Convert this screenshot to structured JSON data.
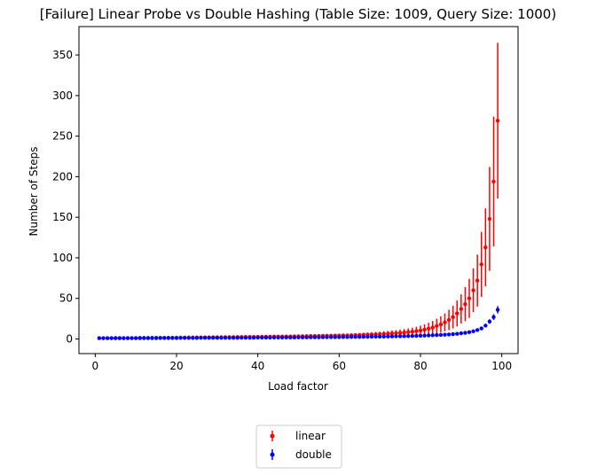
{
  "chart_data": {
    "type": "scatter",
    "title": "[Failure] Linear Probe vs Double Hashing (Table Size: 1009, Query Size: 1000)",
    "xlabel": "Load factor",
    "ylabel": "Number of Steps",
    "xlim": [
      -4,
      104
    ],
    "ylim": [
      -18,
      385
    ],
    "xticks": [
      0,
      20,
      40,
      60,
      80,
      100
    ],
    "yticks": [
      0,
      50,
      100,
      150,
      200,
      250,
      300,
      350
    ],
    "grid": false,
    "legend_position": "below",
    "x": [
      1,
      2,
      3,
      4,
      5,
      6,
      7,
      8,
      9,
      10,
      11,
      12,
      13,
      14,
      15,
      16,
      17,
      18,
      19,
      20,
      21,
      22,
      23,
      24,
      25,
      26,
      27,
      28,
      29,
      30,
      31,
      32,
      33,
      34,
      35,
      36,
      37,
      38,
      39,
      40,
      41,
      42,
      43,
      44,
      45,
      46,
      47,
      48,
      49,
      50,
      51,
      52,
      53,
      54,
      55,
      56,
      57,
      58,
      59,
      60,
      61,
      62,
      63,
      64,
      65,
      66,
      67,
      68,
      69,
      70,
      71,
      72,
      73,
      74,
      75,
      76,
      77,
      78,
      79,
      80,
      81,
      82,
      83,
      84,
      85,
      86,
      87,
      88,
      89,
      90,
      91,
      92,
      93,
      94,
      95,
      96,
      97,
      98,
      99
    ],
    "series": [
      {
        "name": "linear",
        "color": "#ff0000",
        "values": [
          1.0,
          1.0,
          1.0,
          1.0,
          1.1,
          1.1,
          1.1,
          1.2,
          1.2,
          1.2,
          1.3,
          1.3,
          1.3,
          1.4,
          1.4,
          1.4,
          1.5,
          1.5,
          1.6,
          1.6,
          1.7,
          1.7,
          1.8,
          1.8,
          1.9,
          1.9,
          2.0,
          2.0,
          2.1,
          2.1,
          2.2,
          2.2,
          2.3,
          2.3,
          2.4,
          2.4,
          2.5,
          2.5,
          2.6,
          2.7,
          2.7,
          2.8,
          2.8,
          2.9,
          3.0,
          3.0,
          3.1,
          3.1,
          3.2,
          3.3,
          3.4,
          3.5,
          3.6,
          3.7,
          3.8,
          3.9,
          4.0,
          4.1,
          4.2,
          4.3,
          4.4,
          4.5,
          4.6,
          4.8,
          5.0,
          5.2,
          5.4,
          5.6,
          5.8,
          6.0,
          6.3,
          6.6,
          6.9,
          7.2,
          7.6,
          8.0,
          8.5,
          9.0,
          9.7,
          10.5,
          11.5,
          12.8,
          14.2,
          16.0,
          18.0,
          20.5,
          23.5,
          27.0,
          31.5,
          37.0,
          43.0,
          50.0,
          60.0,
          72.0,
          92.0,
          113.0,
          148.0,
          194.0,
          269.0
        ],
        "errors": [
          0.1,
          0.1,
          0.1,
          0.1,
          0.1,
          0.1,
          0.1,
          0.1,
          0.1,
          0.1,
          0.1,
          0.1,
          0.1,
          0.2,
          0.2,
          0.2,
          0.2,
          0.2,
          0.2,
          0.2,
          0.2,
          0.3,
          0.3,
          0.3,
          0.3,
          0.3,
          0.3,
          0.3,
          0.4,
          0.4,
          0.4,
          0.4,
          0.4,
          0.5,
          0.5,
          0.5,
          0.5,
          0.6,
          0.6,
          0.6,
          0.7,
          0.7,
          0.7,
          0.8,
          0.8,
          0.9,
          0.9,
          1.0,
          1.0,
          1.1,
          1.2,
          1.2,
          1.3,
          1.3,
          1.4,
          1.5,
          1.5,
          1.6,
          1.7,
          1.8,
          1.9,
          2.0,
          2.1,
          2.2,
          2.3,
          2.4,
          2.6,
          2.7,
          2.9,
          3.0,
          3.2,
          3.4,
          3.6,
          3.8,
          4.0,
          4.3,
          4.6,
          5.0,
          5.4,
          6.0,
          6.5,
          7.2,
          8.0,
          9.0,
          10.0,
          11.0,
          12.5,
          14.0,
          16.0,
          18.0,
          21.0,
          24.0,
          27.0,
          32.0,
          40.0,
          48.0,
          64.0,
          80.0,
          96.0
        ]
      },
      {
        "name": "double",
        "color": "#0000ff",
        "values": [
          1.0,
          1.0,
          1.0,
          1.0,
          1.0,
          1.0,
          1.0,
          1.0,
          1.0,
          1.0,
          1.1,
          1.1,
          1.1,
          1.1,
          1.1,
          1.2,
          1.2,
          1.2,
          1.2,
          1.2,
          1.3,
          1.3,
          1.3,
          1.3,
          1.3,
          1.4,
          1.4,
          1.4,
          1.4,
          1.4,
          1.5,
          1.5,
          1.5,
          1.5,
          1.5,
          1.6,
          1.6,
          1.6,
          1.6,
          1.7,
          1.7,
          1.7,
          1.7,
          1.8,
          1.8,
          1.8,
          1.9,
          1.9,
          1.9,
          2.0,
          2.0,
          2.0,
          2.1,
          2.1,
          2.1,
          2.2,
          2.2,
          2.3,
          2.3,
          2.3,
          2.4,
          2.4,
          2.5,
          2.5,
          2.6,
          2.7,
          2.7,
          2.8,
          2.9,
          2.9,
          3.0,
          3.1,
          3.2,
          3.3,
          3.4,
          3.5,
          3.6,
          3.7,
          3.9,
          4.0,
          4.2,
          4.4,
          4.6,
          4.8,
          5.0,
          5.3,
          5.6,
          6.0,
          6.4,
          7.0,
          7.6,
          8.4,
          9.5,
          11.0,
          13.0,
          16.5,
          21.5,
          27.0,
          36.0
        ],
        "errors": [
          0.05,
          0.05,
          0.05,
          0.05,
          0.05,
          0.05,
          0.05,
          0.05,
          0.05,
          0.05,
          0.05,
          0.05,
          0.05,
          0.05,
          0.05,
          0.05,
          0.05,
          0.05,
          0.05,
          0.05,
          0.05,
          0.05,
          0.05,
          0.05,
          0.05,
          0.05,
          0.05,
          0.05,
          0.05,
          0.05,
          0.1,
          0.1,
          0.1,
          0.1,
          0.1,
          0.1,
          0.1,
          0.1,
          0.1,
          0.1,
          0.1,
          0.1,
          0.1,
          0.1,
          0.1,
          0.1,
          0.1,
          0.1,
          0.1,
          0.1,
          0.1,
          0.1,
          0.1,
          0.1,
          0.1,
          0.1,
          0.1,
          0.1,
          0.1,
          0.1,
          0.2,
          0.2,
          0.2,
          0.2,
          0.2,
          0.2,
          0.2,
          0.2,
          0.2,
          0.2,
          0.2,
          0.2,
          0.2,
          0.3,
          0.3,
          0.3,
          0.3,
          0.3,
          0.3,
          0.4,
          0.4,
          0.4,
          0.5,
          0.5,
          0.5,
          0.6,
          0.6,
          0.7,
          0.8,
          0.9,
          1.0,
          1.1,
          1.2,
          1.5,
          1.8,
          2.2,
          2.8,
          3.5,
          4.5
        ]
      }
    ]
  }
}
